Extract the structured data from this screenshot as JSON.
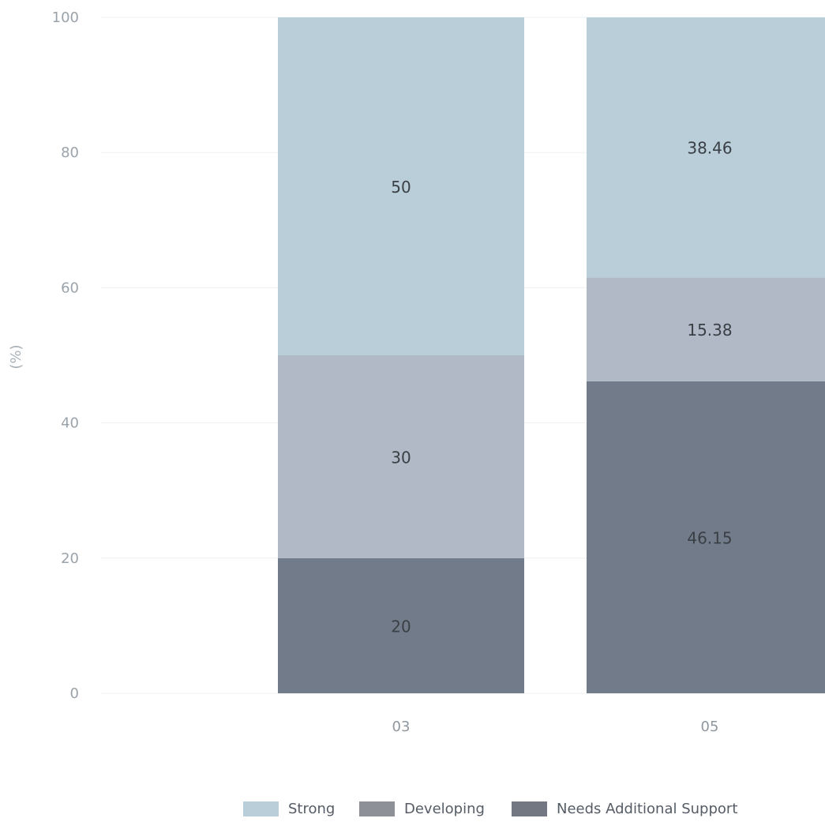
{
  "chart_data": {
    "type": "bar",
    "stacked": true,
    "title": "",
    "xlabel": "",
    "ylabel": "(%)",
    "ylim": [
      0,
      100
    ],
    "yticks": [
      0,
      20,
      40,
      60,
      80,
      100
    ],
    "categories": [
      "03",
      "05"
    ],
    "series": [
      {
        "name": "Needs Additional Support",
        "color": "#727b89",
        "values": [
          20,
          46.15
        ]
      },
      {
        "name": "Developing",
        "color": "#b1b9c6",
        "values": [
          30,
          15.38
        ]
      },
      {
        "name": "Strong",
        "color": "#b9ced9",
        "values": [
          50,
          38.46
        ]
      }
    ],
    "grid": true,
    "legend_position": "bottom"
  },
  "legend": {
    "items": [
      {
        "label": "Strong",
        "color": "#b9ced9"
      },
      {
        "label": "Developing",
        "color": "#8e9097"
      },
      {
        "label": "Needs Additional Support",
        "color": "#737782"
      }
    ]
  }
}
